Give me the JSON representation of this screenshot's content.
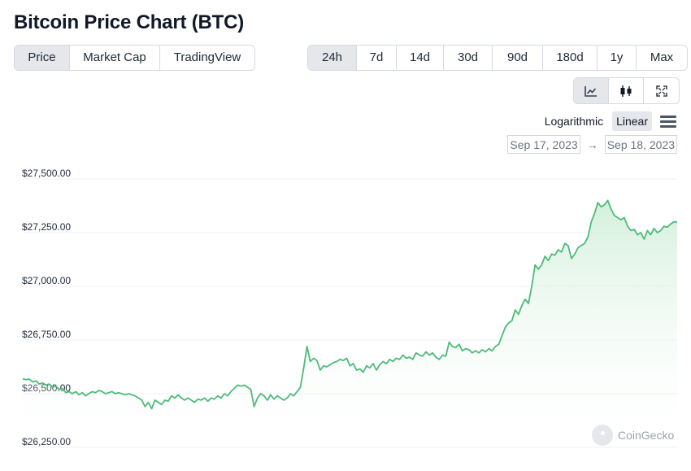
{
  "header": {
    "title": "Bitcoin Price Chart (BTC)"
  },
  "view_tabs": [
    {
      "label": "Price",
      "active": true
    },
    {
      "label": "Market Cap",
      "active": false
    },
    {
      "label": "TradingView",
      "active": false
    }
  ],
  "range_tabs": [
    {
      "label": "24h",
      "active": true
    },
    {
      "label": "7d",
      "active": false
    },
    {
      "label": "14d",
      "active": false
    },
    {
      "label": "30d",
      "active": false
    },
    {
      "label": "90d",
      "active": false
    },
    {
      "label": "180d",
      "active": false
    },
    {
      "label": "1y",
      "active": false
    },
    {
      "label": "Max",
      "active": false
    }
  ],
  "chart_type_buttons": [
    {
      "icon": "line-chart-icon",
      "active": true
    },
    {
      "icon": "candlestick-icon",
      "active": false
    },
    {
      "icon": "fullscreen-icon",
      "active": false
    }
  ],
  "scale": {
    "logarithmic": "Logarithmic",
    "linear": "Linear",
    "active": "linear"
  },
  "date_range": {
    "from": "Sep 17, 2023",
    "arrow": "→",
    "to": "Sep 18, 2023"
  },
  "watermark": {
    "label": "CoinGecko"
  },
  "colors": {
    "line": "#4dbb7a",
    "fill_top": "#d4f0dc",
    "grid": "#eef0f3",
    "active_bg": "#e5e7eb"
  },
  "chart_data": {
    "type": "area",
    "title": "",
    "xlabel": "",
    "ylabel": "",
    "yticks": [
      "$26,250.00",
      "$26,500.00",
      "$26,750.00",
      "$27,000.00",
      "$27,250.00",
      "$27,500.00"
    ],
    "ylim": [
      26250,
      27500
    ],
    "grid": true,
    "y": [
      26570,
      26565,
      26568,
      26555,
      26560,
      26545,
      26550,
      26540,
      26545,
      26530,
      26535,
      26520,
      26525,
      26505,
      26510,
      26500,
      26510,
      26495,
      26505,
      26490,
      26500,
      26510,
      26505,
      26515,
      26510,
      26500,
      26505,
      26510,
      26500,
      26505,
      26500,
      26495,
      26500,
      26495,
      26490,
      26480,
      26470,
      26440,
      26460,
      26430,
      26470,
      26460,
      26450,
      26470,
      26465,
      26490,
      26480,
      26495,
      26480,
      26470,
      26480,
      26470,
      26460,
      26475,
      26470,
      26480,
      26465,
      26480,
      26475,
      26490,
      26480,
      26500,
      26490,
      26510,
      26525,
      26540,
      26535,
      26540,
      26530,
      26520,
      26440,
      26480,
      26500,
      26490,
      26470,
      26495,
      26475,
      26490,
      26480,
      26470,
      26480,
      26500,
      26490,
      26510,
      26530,
      26620,
      26720,
      26650,
      26665,
      26655,
      26610,
      26630,
      26625,
      26635,
      26645,
      26650,
      26660,
      26655,
      26665,
      26630,
      26640,
      26610,
      26615,
      26600,
      26630,
      26620,
      26640,
      26610,
      26635,
      26650,
      26640,
      26660,
      26650,
      26665,
      26660,
      26680,
      26665,
      26670,
      26660,
      26690,
      26680,
      26675,
      26695,
      26680,
      26690,
      26670,
      26660,
      26680,
      26675,
      26740,
      26720,
      26715,
      26730,
      26700,
      26710,
      26705,
      26690,
      26700,
      26690,
      26705,
      26695,
      26710,
      26700,
      26720,
      26730,
      26770,
      26810,
      26830,
      26840,
      26890,
      26870,
      26910,
      26940,
      26920,
      27000,
      27100,
      27080,
      27100,
      27140,
      27120,
      27150,
      27145,
      27170,
      27160,
      27200,
      27190,
      27130,
      27150,
      27180,
      27190,
      27200,
      27230,
      27300,
      27340,
      27390,
      27370,
      27380,
      27400,
      27360,
      27330,
      27320,
      27310,
      27320,
      27280,
      27260,
      27265,
      27240,
      27250,
      27220,
      27260,
      27240,
      27270,
      27250,
      27260,
      27280,
      27275,
      27290,
      27300,
      27300
    ]
  }
}
